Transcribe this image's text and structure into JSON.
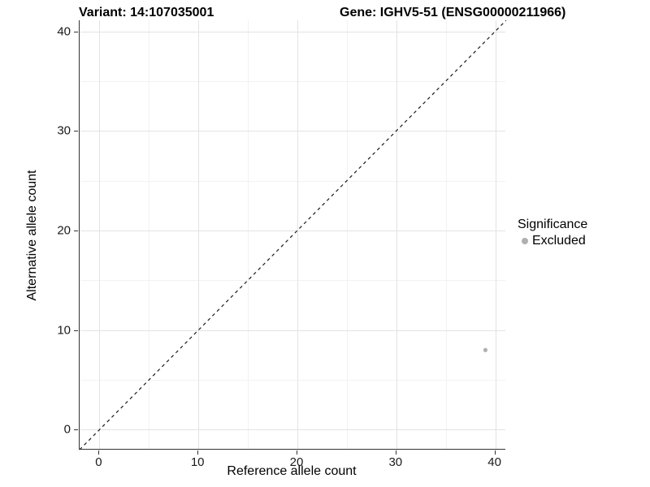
{
  "titles": {
    "variant": "Variant: 14:107035001",
    "gene": "Gene: IGHV5-51 (ENSG00000211966)"
  },
  "chart_data": {
    "type": "scatter",
    "title_left": "Variant: 14:107035001",
    "title_right": "Gene: IGHV5-51 (ENSG00000211966)",
    "xlabel": "Reference allele count",
    "ylabel": "Alternative allele count",
    "xlim": [
      -2,
      41.1
    ],
    "ylim": [
      -2,
      41.1
    ],
    "x_ticks": [
      0,
      10,
      20,
      30,
      40
    ],
    "y_ticks": [
      0,
      10,
      20,
      30,
      40
    ],
    "x_minor_ticks": [
      5,
      15,
      25,
      35
    ],
    "y_minor_ticks": [
      5,
      15,
      25,
      35
    ],
    "grid": "on",
    "points": [
      {
        "x": 39,
        "y": 8,
        "series": "Excluded"
      }
    ],
    "reference_line": {
      "type": "identity",
      "slope": 1,
      "intercept": 0,
      "style": "dashed"
    },
    "legend": {
      "title": "Significance",
      "position": "right",
      "entries": [
        {
          "label": "Excluded",
          "marker": "circle",
          "color": "#b0b0b0"
        }
      ]
    }
  },
  "colors": {
    "background": "#ffffff",
    "major_grid": "#e3e3e3",
    "minor_grid": "#f2f2f2",
    "axis_line": "#333333",
    "tick_text": "#1a1a1a",
    "title_text": "#000000",
    "point": "#b0b0b0",
    "dashed_line": "#1a1a1a"
  }
}
